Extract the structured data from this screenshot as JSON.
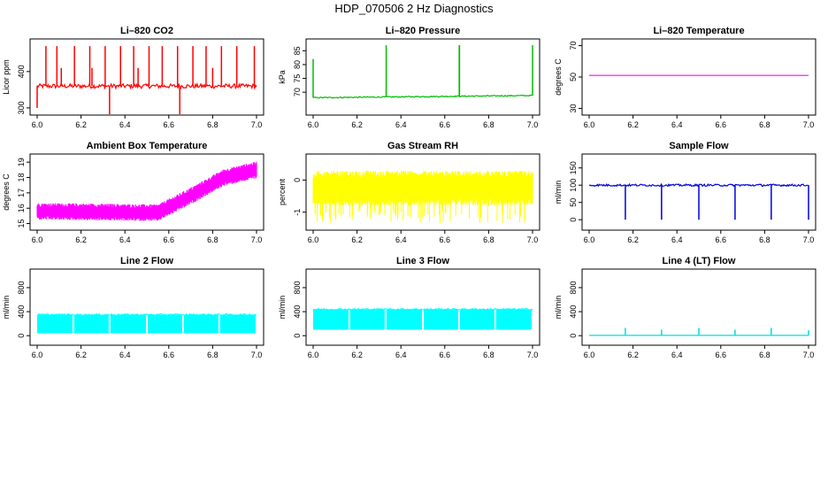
{
  "page": {
    "title": "HDP_070506  2 Hz Diagnostics"
  },
  "chart_data": [
    {
      "type": "line",
      "title": "Li–820 CO2",
      "ylabel": "Licor ppm",
      "xlim": [
        6.0,
        7.0
      ],
      "ylim": [
        290,
        480
      ],
      "xticks": [
        "6.0",
        "6.2",
        "6.4",
        "6.6",
        "6.8",
        "7.0"
      ],
      "yticks": [
        300,
        400
      ],
      "color": "#ff0000",
      "series": [
        {
          "baseline": 360,
          "noise": 6,
          "spikes": [
            [
              6.04,
              470
            ],
            [
              6.09,
              470
            ],
            [
              6.11,
              410
            ],
            [
              6.17,
              470
            ],
            [
              6.24,
              470
            ],
            [
              6.25,
              410
            ],
            [
              6.31,
              470
            ],
            [
              6.33,
              280
            ],
            [
              6.38,
              470
            ],
            [
              6.44,
              470
            ],
            [
              6.46,
              410
            ],
            [
              6.51,
              470
            ],
            [
              6.57,
              470
            ],
            [
              6.64,
              470
            ],
            [
              6.65,
              270
            ],
            [
              6.71,
              470
            ],
            [
              6.77,
              470
            ],
            [
              6.8,
              410
            ],
            [
              6.84,
              470
            ],
            [
              6.91,
              470
            ],
            [
              6.99,
              470
            ],
            [
              6.0,
              300
            ]
          ]
        }
      ]
    },
    {
      "type": "line",
      "title": "Li–820 Pressure",
      "ylabel": "kPa",
      "xlim": [
        6.0,
        7.0
      ],
      "ylim": [
        63,
        88
      ],
      "xticks": [
        "6.0",
        "6.2",
        "6.4",
        "6.6",
        "6.8",
        "7.0"
      ],
      "yticks": [
        70,
        75,
        80,
        85
      ],
      "color": "#00bb00",
      "series": [
        {
          "start": 68,
          "end": 68.8,
          "noise": 0.2,
          "spikes": [
            [
              6.0,
              82
            ],
            [
              6.333,
              87
            ],
            [
              6.666,
              87
            ],
            [
              6.667,
              87
            ],
            [
              7.0,
              87
            ]
          ]
        }
      ]
    },
    {
      "type": "line",
      "title": "Li–820 Temperature",
      "ylabel": "degrees C",
      "xlim": [
        6.0,
        7.0
      ],
      "ylim": [
        28,
        72
      ],
      "xticks": [
        "6.0",
        "6.2",
        "6.4",
        "6.6",
        "6.8",
        "7.0"
      ],
      "yticks": [
        30,
        50,
        70
      ],
      "color": "#ff00ff",
      "series": [
        {
          "start": 51,
          "end": 51,
          "noise": 0
        }
      ]
    },
    {
      "type": "line",
      "title": "Ambient Box Temperature",
      "ylabel": "degrees C",
      "xlim": [
        6.0,
        7.0
      ],
      "ylim": [
        14.8,
        19.3
      ],
      "xticks": [
        "6.0",
        "6.2",
        "6.4",
        "6.6",
        "6.8",
        "7.0"
      ],
      "yticks": [
        15,
        16,
        17,
        18,
        19
      ],
      "color": "#ff00ff",
      "series": [
        {
          "profile": [
            [
              6.0,
              15.8
            ],
            [
              6.55,
              15.7
            ],
            [
              6.7,
              16.8
            ],
            [
              6.85,
              18.0
            ],
            [
              7.0,
              18.5
            ]
          ],
          "band": 1.0
        }
      ]
    },
    {
      "type": "line",
      "title": "Gas Stream RH",
      "ylabel": "percent",
      "xlim": [
        6.0,
        7.0
      ],
      "ylim": [
        -1.45,
        0.7
      ],
      "xticks": [
        "6.0",
        "6.2",
        "6.4",
        "6.6",
        "6.8",
        "7.0"
      ],
      "yticks": [
        -1,
        0
      ],
      "color": "#ffff00",
      "series": [
        {
          "center": -0.25,
          "band": 0.9,
          "low_spikes": -1.35
        }
      ]
    },
    {
      "type": "line",
      "title": "Sample Flow",
      "ylabel": "ml/min",
      "xlim": [
        6.0,
        7.0
      ],
      "ylim": [
        -20,
        180
      ],
      "xticks": [
        "6.0",
        "6.2",
        "6.4",
        "6.6",
        "6.8",
        "7.0"
      ],
      "yticks": [
        0,
        50,
        100,
        150
      ],
      "color": "#0000dd",
      "series": [
        {
          "baseline": 100,
          "noise": 3,
          "dips": [
            [
              6.165,
              0
            ],
            [
              6.33,
              0
            ],
            [
              6.5,
              0
            ],
            [
              6.665,
              0
            ],
            [
              6.83,
              0
            ],
            [
              7.0,
              0
            ]
          ]
        }
      ]
    },
    {
      "type": "area",
      "title": "Line 2 Flow",
      "ylabel": "ml/min",
      "xlim": [
        6.0,
        7.0
      ],
      "ylim": [
        -100,
        1050
      ],
      "xticks": [
        "6.0",
        "6.2",
        "6.4",
        "6.6",
        "6.8",
        "7.0"
      ],
      "yticks": [
        0,
        400,
        800
      ],
      "color": "#00ffff",
      "series": [
        {
          "low": 40,
          "high": 350,
          "gaps": [
            6.165,
            6.33,
            6.5,
            6.665,
            6.83
          ]
        }
      ]
    },
    {
      "type": "area",
      "title": "Line 3 Flow",
      "ylabel": "ml/min",
      "xlim": [
        6.0,
        7.0
      ],
      "ylim": [
        -100,
        1050
      ],
      "xticks": [
        "6.0",
        "6.2",
        "6.4",
        "6.6",
        "6.8",
        "7.0"
      ],
      "yticks": [
        0,
        400,
        800
      ],
      "color": "#00ffff",
      "series": [
        {
          "low": 100,
          "high": 440,
          "gaps": [
            6.165,
            6.33,
            6.5,
            6.665,
            6.83
          ]
        }
      ]
    },
    {
      "type": "line",
      "title": "Line 4 (LT) Flow",
      "ylabel": "ml/min",
      "xlim": [
        6.0,
        7.0
      ],
      "ylim": [
        -100,
        1050
      ],
      "xticks": [
        "6.0",
        "6.2",
        "6.4",
        "6.6",
        "6.8",
        "7.0"
      ],
      "yticks": [
        0,
        400,
        800
      ],
      "color": "#00dddd",
      "series": [
        {
          "baseline": 5,
          "spikes": [
            [
              6.165,
              130
            ],
            [
              6.33,
              100
            ],
            [
              6.5,
              130
            ],
            [
              6.665,
              100
            ],
            [
              6.83,
              130
            ],
            [
              7.0,
              90
            ]
          ]
        }
      ]
    }
  ]
}
